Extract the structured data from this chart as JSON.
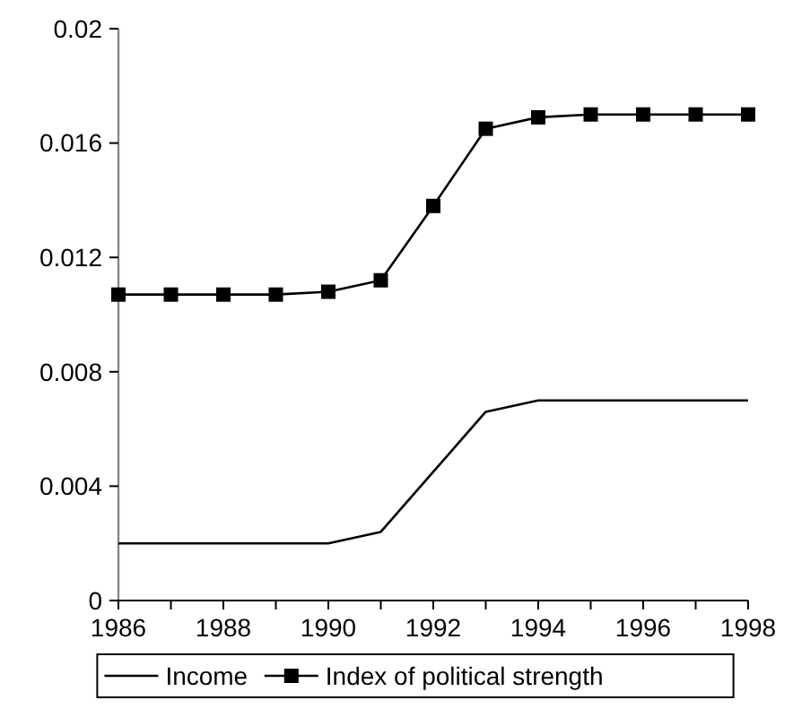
{
  "chart_data": {
    "type": "line",
    "x": [
      1986,
      1987,
      1988,
      1989,
      1990,
      1991,
      1992,
      1993,
      1994,
      1995,
      1996,
      1997,
      1998
    ],
    "series": [
      {
        "name": "Income",
        "color": "#000000",
        "marker": "none",
        "values": [
          0.002,
          0.002,
          0.002,
          0.002,
          0.002,
          0.0024,
          0.0045,
          0.0066,
          0.007,
          0.007,
          0.007,
          0.007,
          0.007
        ]
      },
      {
        "name": "Index of political strength",
        "color": "#000000",
        "marker": "square",
        "values": [
          0.0107,
          0.0107,
          0.0107,
          0.0107,
          0.0108,
          0.0112,
          0.0138,
          0.0165,
          0.0169,
          0.017,
          0.017,
          0.017,
          0.017
        ]
      }
    ],
    "xlim": [
      1986,
      1998
    ],
    "xticks": [
      1986,
      {
        "value": 1987,
        "label": null
      },
      1988,
      {
        "value": 1989,
        "label": null
      },
      1990,
      {
        "value": 1991,
        "label": null
      },
      1992,
      {
        "value": 1993,
        "label": null
      },
      1994,
      {
        "value": 1995,
        "label": null
      },
      1996,
      {
        "value": 1997,
        "label": null
      },
      1998
    ],
    "ylim": [
      0,
      0.02
    ],
    "yticks": [
      0,
      0.004,
      0.008,
      0.012,
      0.016,
      0.02
    ],
    "grid": false,
    "legend": "bottom",
    "line_style": "solid"
  }
}
